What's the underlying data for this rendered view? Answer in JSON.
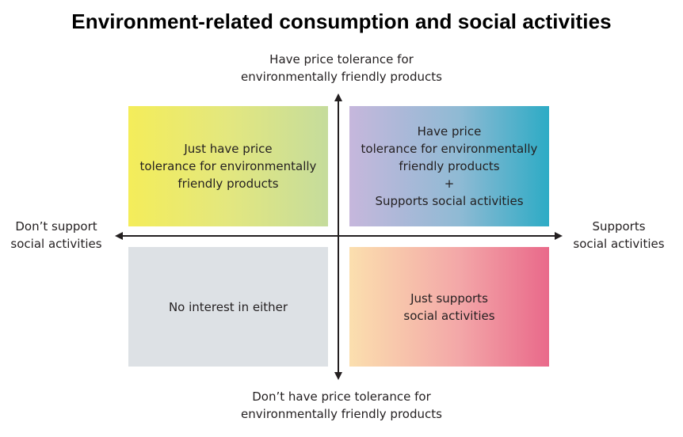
{
  "title": "Environment-related consumption and social activities",
  "axes": {
    "top": [
      "Have price tolerance for",
      "environmentally friendly products"
    ],
    "bottom": [
      "Don’t have price tolerance for",
      "environmentally friendly products"
    ],
    "left": [
      "Don’t support",
      "social activities"
    ],
    "right": [
      "Supports",
      "social activities"
    ]
  },
  "quadrants": {
    "top_left": {
      "lines": [
        "Just have price",
        "tolerance for environmentally",
        "friendly products"
      ],
      "colors": [
        "#f4ed5a",
        "#c5dc9c"
      ]
    },
    "top_right": {
      "lines": [
        "Have price",
        "tolerance for environmentally",
        "friendly products",
        "+",
        "Supports social activities"
      ],
      "colors": [
        "#c6b7dc",
        "#2dabc5"
      ]
    },
    "bottom_left": {
      "lines": [
        "No interest in either"
      ],
      "colors": [
        "#dde1e5"
      ]
    },
    "bottom_right": {
      "lines": [
        "Just supports",
        "social activities"
      ],
      "colors": [
        "#fbdfae",
        "#e9698a"
      ]
    }
  }
}
